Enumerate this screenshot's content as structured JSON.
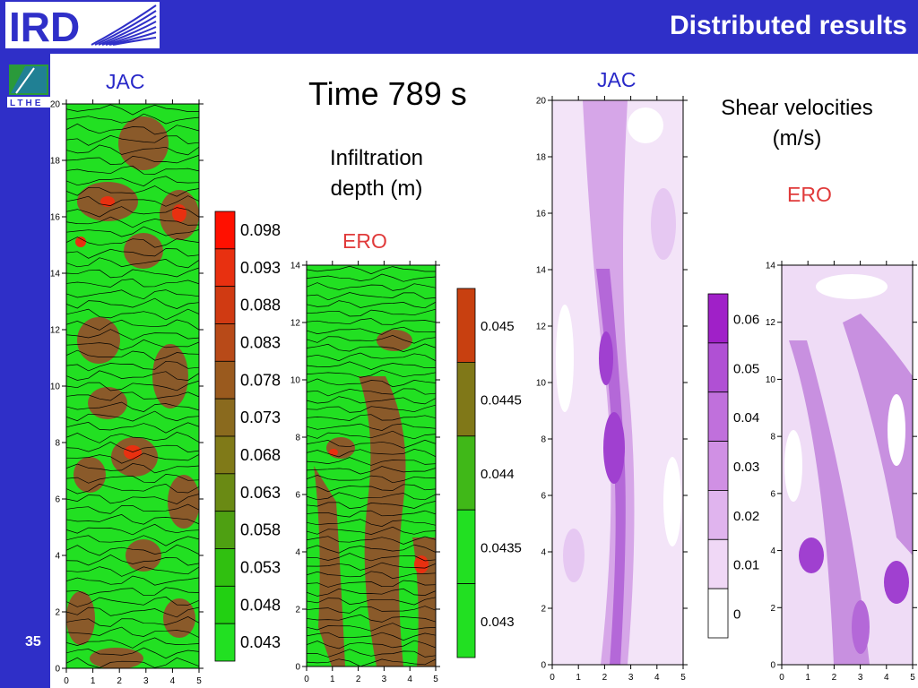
{
  "header": {
    "title": "Distributed results",
    "logo_text": "IRD",
    "lab_logo_text": "LTHE"
  },
  "slide_number": "35",
  "time_label": "Time 789 s",
  "infiltration": {
    "title": "Infiltration\ndepth (m)",
    "title_line1": "Infiltration",
    "title_line2": "depth (m)",
    "jac_label": "JAC",
    "ero_label": "ERO",
    "jac_colorbar": [
      "0.098",
      "0.093",
      "0.088",
      "0.083",
      "0.078",
      "0.073",
      "0.068",
      "0.063",
      "0.058",
      "0.053",
      "0.048",
      "0.043"
    ],
    "ero_colorbar": [
      "0.045",
      "0.0445",
      "0.044",
      "0.0435",
      "0.043"
    ],
    "jac_y_ticks": [
      "0",
      "2",
      "4",
      "6",
      "8",
      "10",
      "12",
      "14",
      "16",
      "18",
      "20"
    ],
    "ero_y_ticks": [
      "0",
      "2",
      "4",
      "6",
      "8",
      "10",
      "12",
      "14"
    ],
    "x_ticks": [
      "0",
      "1",
      "2",
      "3",
      "4",
      "5"
    ]
  },
  "shear": {
    "title_line1": "Shear velocities",
    "title_line2": "(m/s)",
    "jac_label": "JAC",
    "ero_label": "ERO",
    "colorbar": [
      "0.06",
      "0.05",
      "0.04",
      "0.03",
      "0.02",
      "0.01",
      "0"
    ],
    "jac_y_ticks": [
      "0",
      "2",
      "4",
      "6",
      "8",
      "10",
      "12",
      "14",
      "16",
      "18",
      "20"
    ],
    "ero_y_ticks": [
      "0",
      "2",
      "4",
      "6",
      "8",
      "10",
      "12",
      "14"
    ],
    "x_ticks": [
      "0",
      "1",
      "2",
      "3",
      "4",
      "5"
    ]
  },
  "colors": {
    "header_blue": "#2f2fc8",
    "infiltration_green": "#22e022",
    "infiltration_brown": "#8a5a2a",
    "infiltration_red": "#e83010",
    "shear_purple": "#a040d0"
  }
}
